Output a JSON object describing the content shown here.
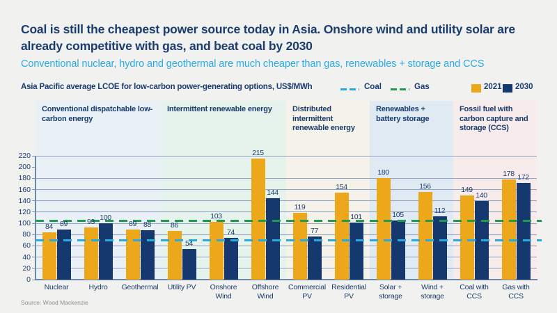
{
  "page": {
    "title": "Coal is still the cheapest power source today in Asia. Onshore wind and utility solar are already competitive with gas, and beat coal by 2030",
    "subtitle": "Conventional nuclear, hydro and geothermal are much cheaper than gas, renewables + storage and CCS",
    "source": "Source: Wood Mackenzie"
  },
  "chart_header": {
    "label": "Asia Pacific average LCOE for low-carbon power-generating options, US$/MWh",
    "legend": {
      "coal_label": "Coal",
      "gas_label": "Gas",
      "y2021_label": "2021",
      "y2030_label": "2030"
    }
  },
  "colors": {
    "title_navy": "#1b3c6e",
    "subtitle_blue": "#2aa9e1",
    "bar_2021": "#eca71b",
    "bar_2030": "#15396f",
    "coal_line": "#29abe2",
    "gas_line": "#1e9b4e",
    "gridline": "#8fa3c0",
    "axis": "#6e88ab"
  },
  "chart_data": {
    "type": "bar",
    "title": "Asia Pacific average LCOE for low-carbon power-generating options, US$/MWh",
    "ylabel": "US$/MWh",
    "xlabel": "",
    "ylim": [
      0,
      220
    ],
    "ytick_step": 20,
    "gridline_missing_at": [
      0,
      200
    ],
    "grid": true,
    "legend_position": "top-right",
    "categories": [
      "Nuclear",
      "Hydro",
      "Geothermal",
      "Utility PV",
      "Onshore Wind",
      "Offshore Wind",
      "Commercial PV",
      "Residential PV",
      "Solar + storage",
      "Wind + storage",
      "Coal with CCS",
      "Gas with CCS"
    ],
    "tick_labels": [
      "Nuclear",
      "Hydro",
      "Geothermal",
      "Utility PV",
      "Onshore\nWind",
      "Offshore\nWind",
      "Commercial\nPV",
      "Residential\nPV",
      "Solar +\nstorage",
      "Wind +\nstorage",
      "Coal with\nCCS",
      "Gas with\nCCS"
    ],
    "series": [
      {
        "name": "2021",
        "color": "#eca71b",
        "values": [
          84,
          93,
          89,
          86,
          103,
          215,
          119,
          154,
          180,
          156,
          149,
          178
        ]
      },
      {
        "name": "2030",
        "color": "#15396f",
        "values": [
          89,
          100,
          88,
          54,
          74,
          144,
          77,
          101,
          105,
          112,
          140,
          172
        ]
      }
    ],
    "reference_lines": [
      {
        "name": "Coal",
        "value": 70,
        "color": "#29abe2",
        "style": "dashed"
      },
      {
        "name": "Gas",
        "value": 105,
        "color": "#1e9b4e",
        "style": "dashed"
      }
    ],
    "groups": [
      {
        "label": "Conventional dispatchable low-carbon energy",
        "span": 3,
        "bg": "#e9f1f6"
      },
      {
        "label": "Intermittent renewable energy",
        "span": 3,
        "bg": "#e6f3ec"
      },
      {
        "label": "Distributed intermittent renewable energy",
        "span": 2,
        "bg": "#f5f3e9"
      },
      {
        "label": "Renewables + battery storage",
        "span": 2,
        "bg": "#dfeaf3"
      },
      {
        "label": "Fossil fuel with carbon capture and storage (CCS)",
        "span": 2,
        "bg": "#f7ebec"
      }
    ]
  }
}
